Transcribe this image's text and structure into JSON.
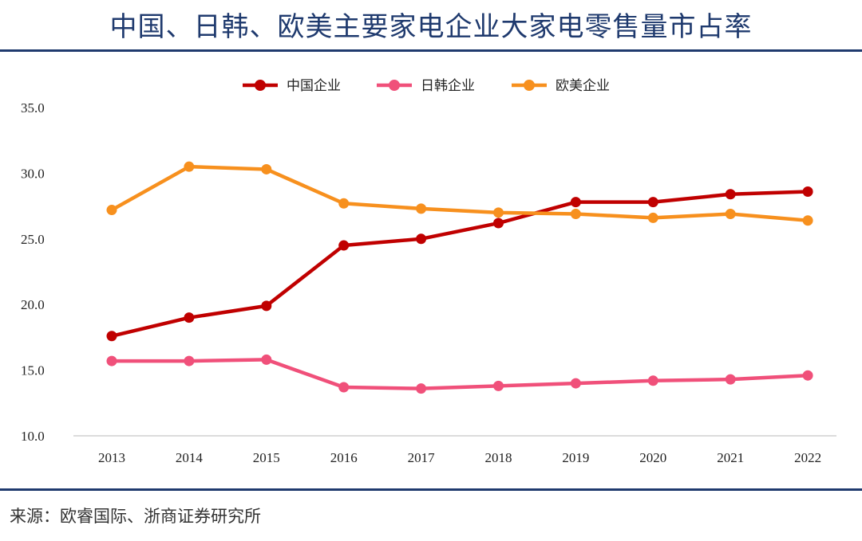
{
  "header": {
    "title": "中国、日韩、欧美主要家电企业大家电零售量市占率"
  },
  "footer": {
    "source": "来源：欧睿国际、浙商证券研究所"
  },
  "chart_data": {
    "type": "line",
    "title": "中国、日韩、欧美主要家电企业大家电零售量市占率",
    "xlabel": "",
    "ylabel": "",
    "x": [
      "2013",
      "2014",
      "2015",
      "2016",
      "2017",
      "2018",
      "2019",
      "2020",
      "2021",
      "2022"
    ],
    "ylim": [
      10.0,
      35.0
    ],
    "yticks": [
      "10.0",
      "15.0",
      "20.0",
      "25.0",
      "30.0",
      "35.0"
    ],
    "grid": false,
    "legend": "top-center",
    "series": [
      {
        "name": "中国企业",
        "color": "#c00000",
        "values": [
          17.6,
          19.0,
          19.9,
          24.5,
          25.0,
          26.2,
          27.8,
          27.8,
          28.4,
          28.6
        ]
      },
      {
        "name": "日韩企业",
        "color": "#f0507a",
        "values": [
          15.7,
          15.7,
          15.8,
          13.7,
          13.6,
          13.8,
          14.0,
          14.2,
          14.3,
          14.6
        ]
      },
      {
        "name": "欧美企业",
        "color": "#f7901e",
        "values": [
          27.2,
          30.5,
          30.3,
          27.7,
          27.3,
          27.0,
          26.9,
          26.6,
          26.9,
          26.4
        ]
      }
    ]
  }
}
